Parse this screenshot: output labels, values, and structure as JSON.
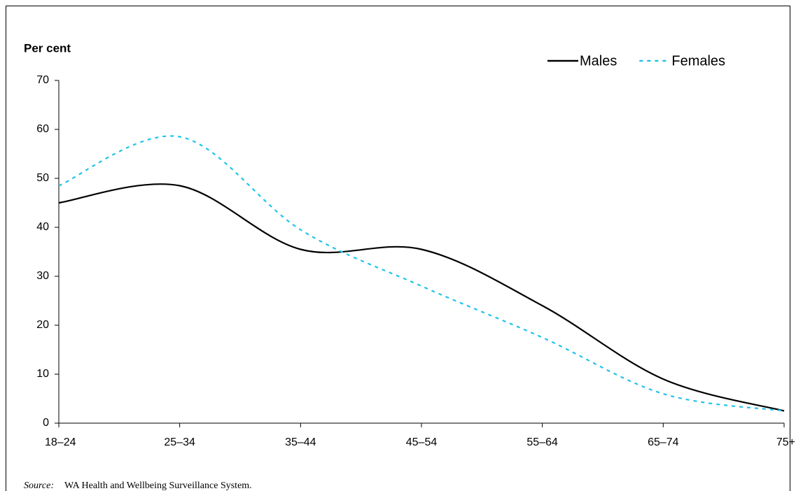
{
  "chart_data": {
    "type": "line",
    "y_label": "Per cent",
    "categories": [
      "18–24",
      "25–34",
      "35–44",
      "45–54",
      "55–64",
      "65–74",
      "75+"
    ],
    "series": [
      {
        "name": "Males",
        "color": "#000000",
        "dash": "solid",
        "values": [
          45,
          48.5,
          35.5,
          35.5,
          24,
          9,
          2.5
        ]
      },
      {
        "name": "Females",
        "color": "#1fc4e8",
        "dash": "dashed",
        "values": [
          48.5,
          58.5,
          39.5,
          28,
          17.5,
          6,
          2.5
        ]
      }
    ],
    "ylim": [
      0,
      70
    ],
    "yticks": [
      0,
      10,
      20,
      30,
      40,
      50,
      60,
      70
    ],
    "legend": "top-right",
    "source_label": "Source:",
    "source_text": "WA Health and Wellbeing Surveillance System."
  }
}
